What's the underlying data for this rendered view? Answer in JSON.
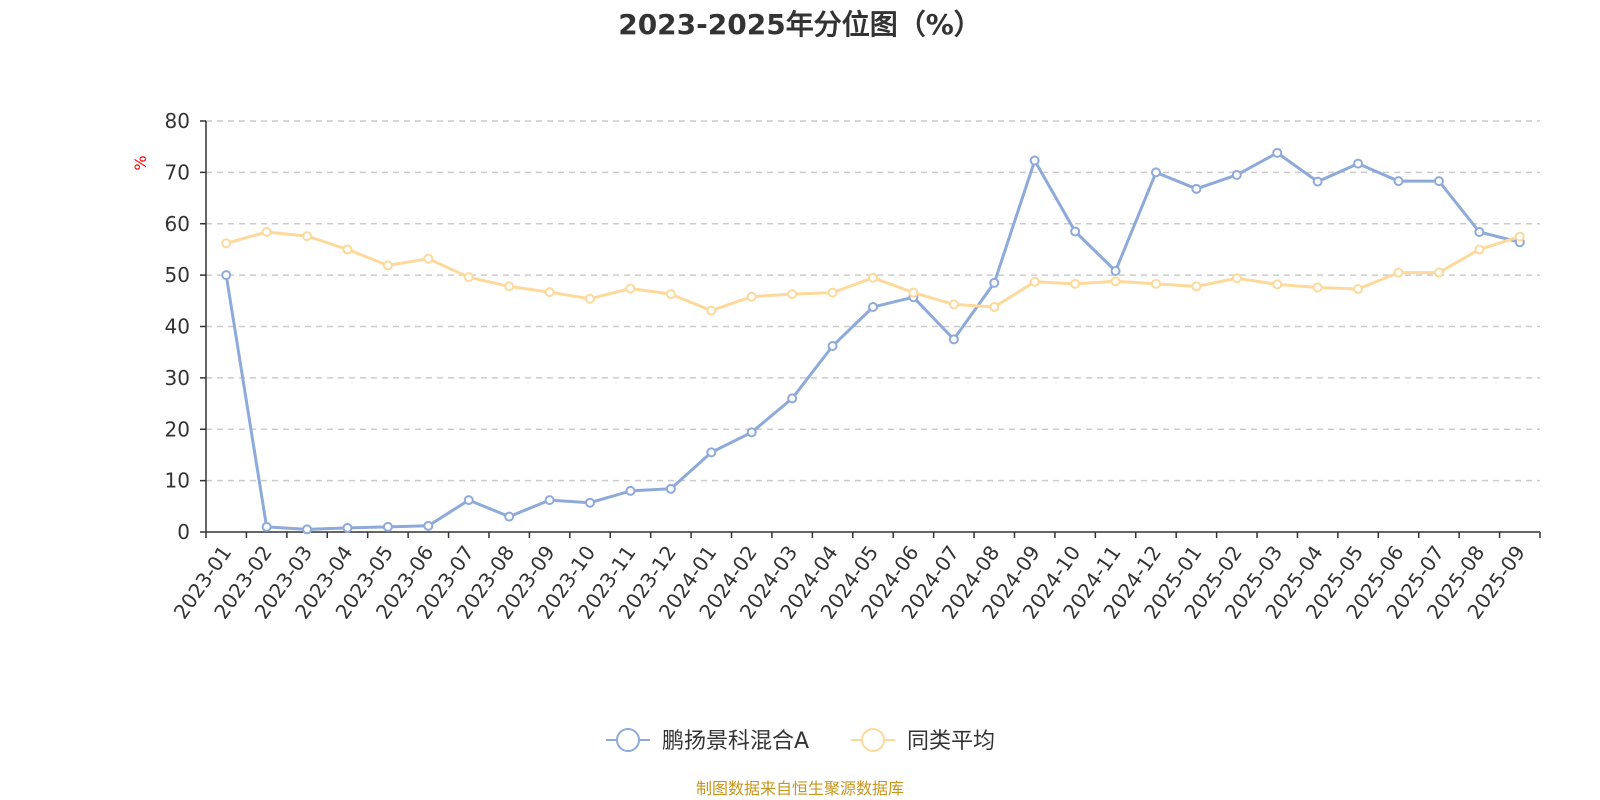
{
  "chart_data": {
    "type": "line",
    "title": "2023-2025年分位图（%）",
    "ylabel": "%",
    "ylim": [
      0,
      80
    ],
    "yticks": [
      0,
      10,
      20,
      30,
      40,
      50,
      60,
      70,
      80
    ],
    "grid": true,
    "legend_position": "bottom",
    "categories": [
      "2023-01",
      "2023-02",
      "2023-03",
      "2023-04",
      "2023-05",
      "2023-06",
      "2023-07",
      "2023-08",
      "2023-09",
      "2023-10",
      "2023-11",
      "2023-12",
      "2024-01",
      "2024-02",
      "2024-03",
      "2024-04",
      "2024-05",
      "2024-06",
      "2024-07",
      "2024-08",
      "2024-09",
      "2024-10",
      "2024-11",
      "2024-12",
      "2025-01",
      "2025-02",
      "2025-03",
      "2025-04",
      "2025-05",
      "2025-06",
      "2025-07",
      "2025-08",
      "2025-09"
    ],
    "series": [
      {
        "name": "鹏扬景科混合A",
        "color": "#8eaadb",
        "values": [
          50,
          1,
          0.5,
          0.8,
          1,
          1.2,
          6.2,
          3,
          6.2,
          5.7,
          8,
          8.4,
          15.5,
          19.4,
          26,
          36.2,
          43.8,
          45.7,
          37.5,
          48.5,
          72.3,
          58.5,
          50.8,
          70,
          66.8,
          69.5,
          73.8,
          68.2,
          71.7,
          68.3,
          68.3,
          58.4,
          56.4
        ]
      },
      {
        "name": "同类平均",
        "color": "#fdd99b",
        "values": [
          56.2,
          58.4,
          57.6,
          55,
          51.9,
          53.2,
          49.6,
          47.8,
          46.7,
          45.4,
          47.4,
          46.3,
          43.1,
          45.8,
          46.3,
          46.6,
          49.5,
          46.6,
          44.3,
          43.8,
          48.7,
          48.3,
          48.8,
          48.3,
          47.8,
          49.4,
          48.2,
          47.6,
          47.3,
          50.5,
          50.5,
          55,
          57.5
        ]
      }
    ]
  },
  "footer": {
    "source": "制图数据来自恒生聚源数据库"
  }
}
